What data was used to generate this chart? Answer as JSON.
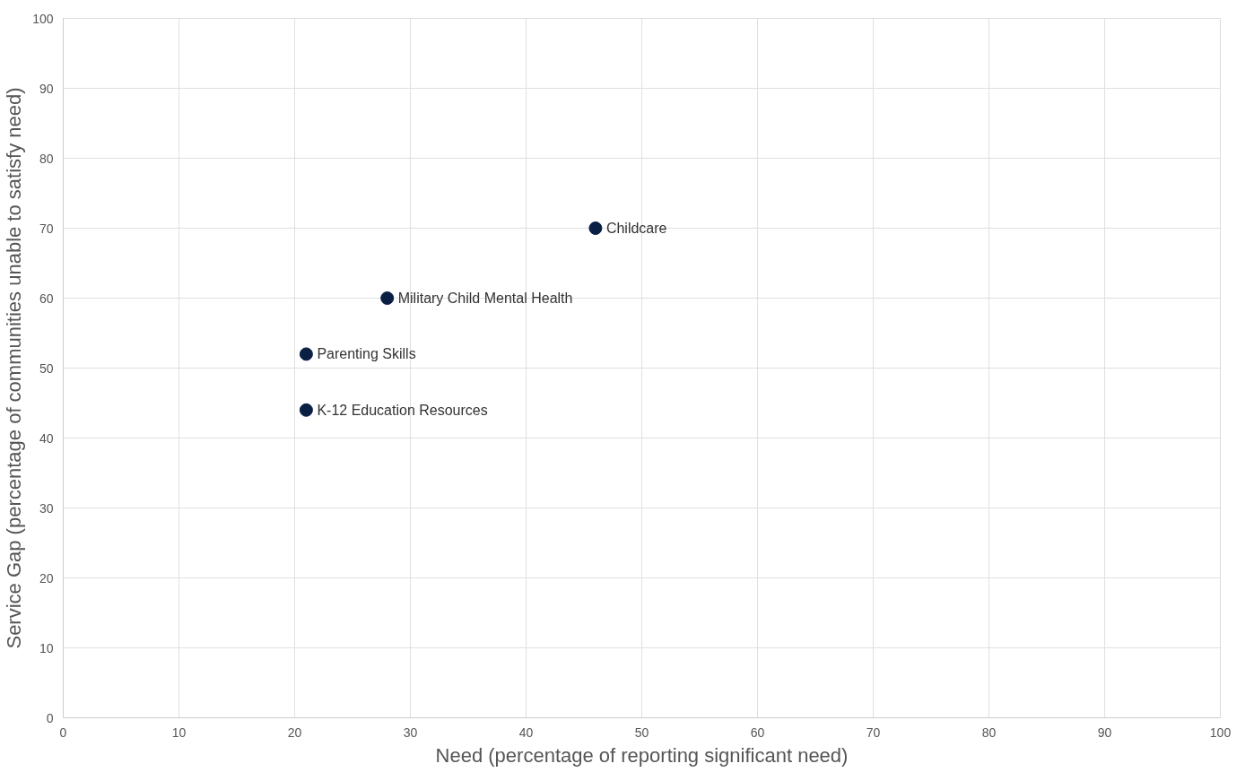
{
  "chart_data": {
    "type": "scatter",
    "xlabel": "Need (percentage of reporting significant need)",
    "ylabel": "Service Gap (percentage of communities unable to satisfy need)",
    "x": [
      46,
      28,
      21,
      21
    ],
    "values": [
      70,
      60,
      52,
      44
    ],
    "color": "#0a1f44",
    "marker": "circle",
    "xlim": [
      0,
      100
    ],
    "ylim": [
      0,
      100
    ],
    "xticks": [
      0,
      10,
      20,
      30,
      40,
      50,
      60,
      70,
      80,
      90,
      100
    ],
    "yticks": [
      0,
      10,
      20,
      30,
      40,
      50,
      60,
      70,
      80,
      90,
      100
    ],
    "grid": true,
    "annotations": [
      {
        "text": "Childcare",
        "x": 46,
        "y": 70
      },
      {
        "text": "Military Child Mental Health",
        "x": 28,
        "y": 60
      },
      {
        "text": "Parenting Skills",
        "x": 21,
        "y": 52
      },
      {
        "text": "K-12 Education Resources",
        "x": 21,
        "y": 44
      }
    ]
  }
}
